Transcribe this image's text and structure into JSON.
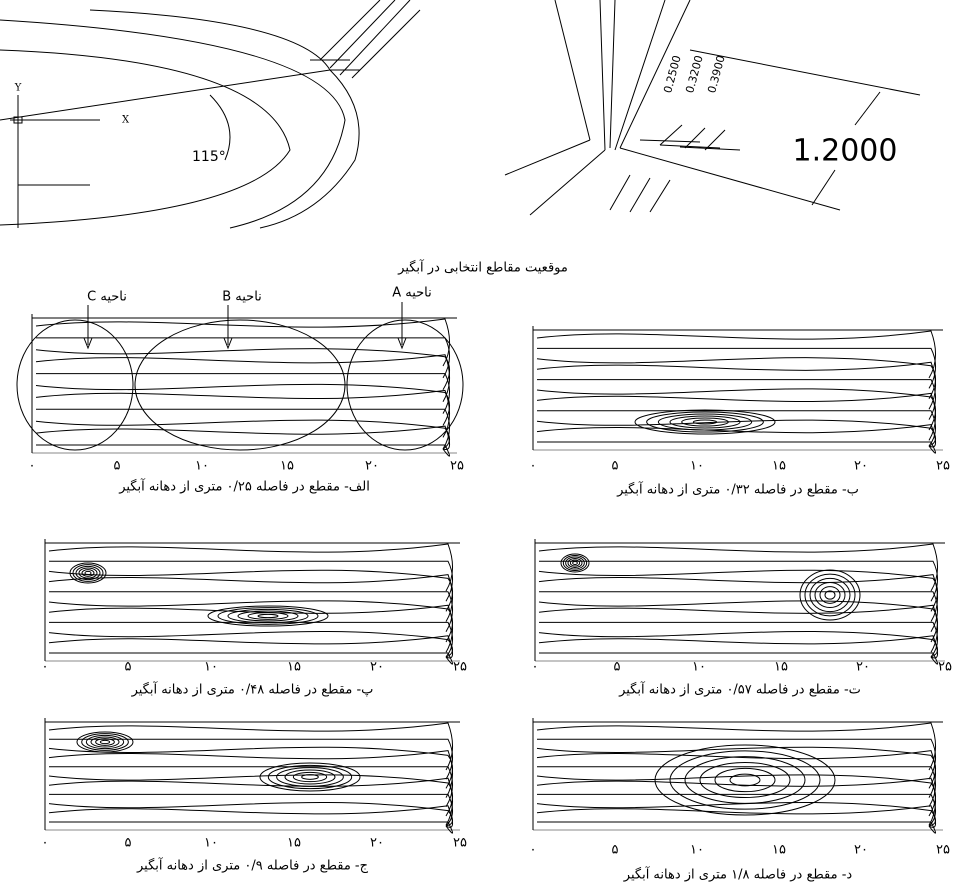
{
  "top_left": {
    "y_axis": "Y",
    "x_axis": "X",
    "angle": "115°"
  },
  "top_right": {
    "dims": [
      "0.2500",
      "0.3200",
      "0.3900"
    ],
    "width": "1.2000"
  },
  "caption": "موقعیت مقاطع انتخابی در آبگیر",
  "regions": [
    "ناحیه C",
    "ناحیه B",
    "ناحیه A"
  ],
  "panels": [
    {
      "ticks": [
        "۰",
        "۵",
        "۱۰",
        "۱۵",
        "۲۰",
        "۲۵"
      ],
      "caption": "الف- مقطع در فاصله ۰/۲۵ متری از دهانه آبگیر"
    },
    {
      "ticks": [
        "۰",
        "۵",
        "۱۰",
        "۱۵",
        "۲۰",
        "۲۵"
      ],
      "caption": "ب- مقطع در فاصله ۰/۳۲ متری از دهانه آبگیر"
    },
    {
      "ticks": [
        "۰",
        "۵",
        "۱۰",
        "۱۵",
        "۲۰",
        "۲۵"
      ],
      "caption": "پ- مقطع در فاصله ۰/۴۸ متری از دهانه آبگیر"
    },
    {
      "ticks": [
        "۰",
        "۵",
        "۱۰",
        "۱۵",
        "۲۰",
        "۲۵"
      ],
      "caption": "ت- مقطع در فاصله ۰/۵۷ متری از دهانه آبگیر"
    },
    {
      "ticks": [
        "۰",
        "۵",
        "۱۰",
        "۱۵",
        "۲۰",
        "۲۵"
      ],
      "caption": "ج- مقطع در فاصله ۰/۹ متری از دهانه آبگیر"
    },
    {
      "ticks": [
        "۰",
        "۵",
        "۱۰",
        "۱۵",
        "۲۰",
        "۲۵"
      ],
      "caption": "د- مقطع در فاصله ۱/۸ متری از دهانه آبگیر"
    }
  ]
}
